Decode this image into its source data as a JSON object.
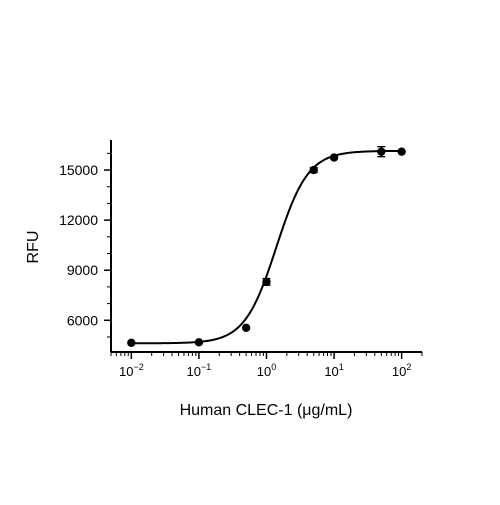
{
  "chart_data": {
    "type": "scatter",
    "xscale": "log",
    "xlabel": "Human CLEC-1 (μg/mL)",
    "ylabel": "RFU",
    "xlim": [
      0.005,
      200
    ],
    "ylim": [
      4100,
      16800
    ],
    "grid": false,
    "x_ticks": [
      {
        "value": 0.01,
        "base": "10",
        "exp": "-2"
      },
      {
        "value": 0.1,
        "base": "10",
        "exp": "-1"
      },
      {
        "value": 1,
        "base": "10",
        "exp": "0"
      },
      {
        "value": 10,
        "base": "10",
        "exp": "1"
      },
      {
        "value": 100,
        "base": "10",
        "exp": "2"
      }
    ],
    "y_ticks": [
      6000,
      9000,
      12000,
      15000
    ],
    "series": [
      {
        "points": [
          {
            "x": 0.01,
            "y": 4650,
            "err": 0
          },
          {
            "x": 0.1,
            "y": 4680,
            "err": 0
          },
          {
            "x": 0.5,
            "y": 5550,
            "err": 0
          },
          {
            "x": 1,
            "y": 8300,
            "err": 200
          },
          {
            "x": 5,
            "y": 15000,
            "err": 150
          },
          {
            "x": 10,
            "y": 15750,
            "err": 0
          },
          {
            "x": 50,
            "y": 16100,
            "err": 300
          },
          {
            "x": 100,
            "y": 16100,
            "err": 0
          }
        ],
        "fit": {
          "model": "4PL",
          "bottom": 4620,
          "top": 16150,
          "ec50": 1.4,
          "hill": 1.85
        }
      }
    ],
    "colors": {
      "line": "#000000",
      "marker": "#000000"
    }
  }
}
